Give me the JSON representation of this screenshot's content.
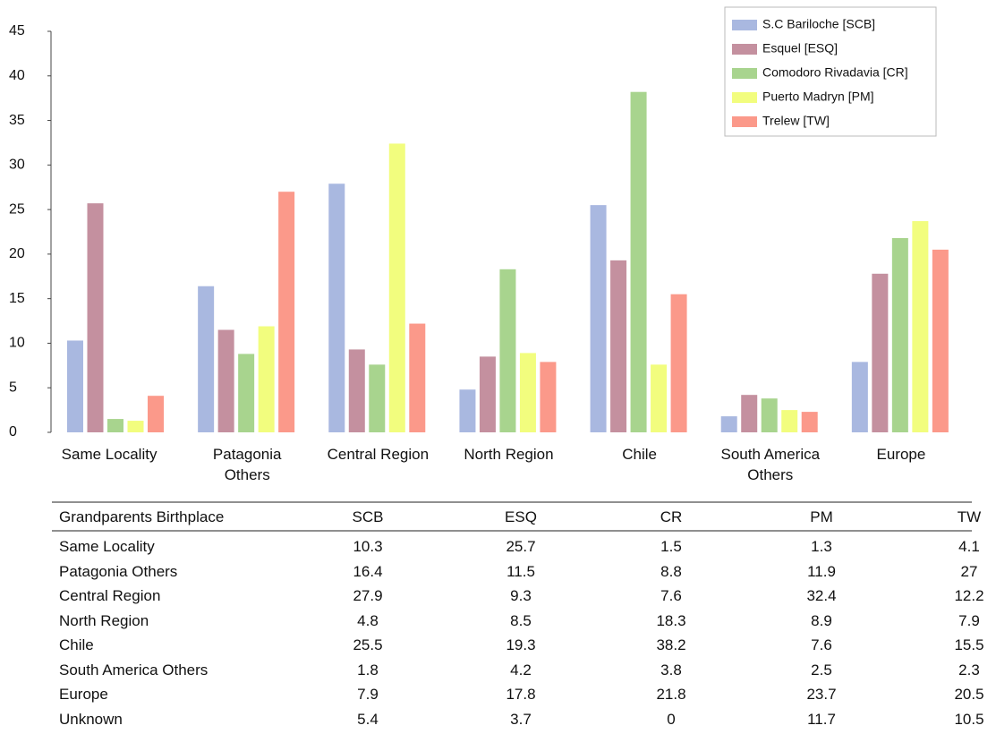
{
  "chart_data": {
    "type": "bar",
    "categories": [
      "Same Locality",
      "Patagonia Others",
      "Central Region",
      "North Region",
      "Chile",
      "South America Others",
      "Europe"
    ],
    "series": [
      {
        "name": "S.C Bariloche [SCB]",
        "color": "#a9b8e0",
        "values": [
          10.3,
          16.4,
          27.9,
          4.8,
          25.5,
          1.8,
          7.9
        ]
      },
      {
        "name": "Esquel [ESQ]",
        "color": "#c4909f",
        "values": [
          25.7,
          11.5,
          9.3,
          8.5,
          19.3,
          4.2,
          17.8
        ]
      },
      {
        "name": "Comodoro Rivadavia  [CR]",
        "color": "#a8d48e",
        "values": [
          1.5,
          8.8,
          7.6,
          18.3,
          38.2,
          3.8,
          21.8
        ]
      },
      {
        "name": "Puerto Madryn [PM]",
        "color": "#f2fd7e",
        "values": [
          1.3,
          11.9,
          32.4,
          8.9,
          7.6,
          2.5,
          23.7
        ]
      },
      {
        "name": "Trelew [TW]",
        "color": "#fb998a",
        "values": [
          4.1,
          27,
          12.2,
          7.9,
          15.5,
          2.3,
          20.5
        ]
      }
    ],
    "ylim": [
      0,
      45
    ],
    "yticks": [
      0,
      5,
      10,
      15,
      20,
      25,
      30,
      35,
      40,
      45
    ],
    "legend": "upper right"
  },
  "table": {
    "header": [
      "Grandparents Birthplace",
      "SCB",
      "ESQ",
      "CR",
      "PM",
      "TW"
    ],
    "rows": [
      [
        "Same Locality",
        "10.3",
        "25.7",
        "1.5",
        "1.3",
        "4.1"
      ],
      [
        "Patagonia Others",
        "16.4",
        "11.5",
        "8.8",
        "11.9",
        "27"
      ],
      [
        "Central Region",
        "27.9",
        "9.3",
        "7.6",
        "32.4",
        "12.2"
      ],
      [
        "North Region",
        "4.8",
        "8.5",
        "18.3",
        "8.9",
        "7.9"
      ],
      [
        "Chile",
        "25.5",
        "19.3",
        "38.2",
        "7.6",
        "15.5"
      ],
      [
        "South America Others",
        "1.8",
        "4.2",
        "3.8",
        "2.5",
        "2.3"
      ],
      [
        "Europe",
        "7.9",
        "17.8",
        "21.8",
        "23.7",
        "20.5"
      ],
      [
        "Unknown",
        "5.4",
        "3.7",
        "0",
        "11.7",
        "10.5"
      ]
    ]
  }
}
